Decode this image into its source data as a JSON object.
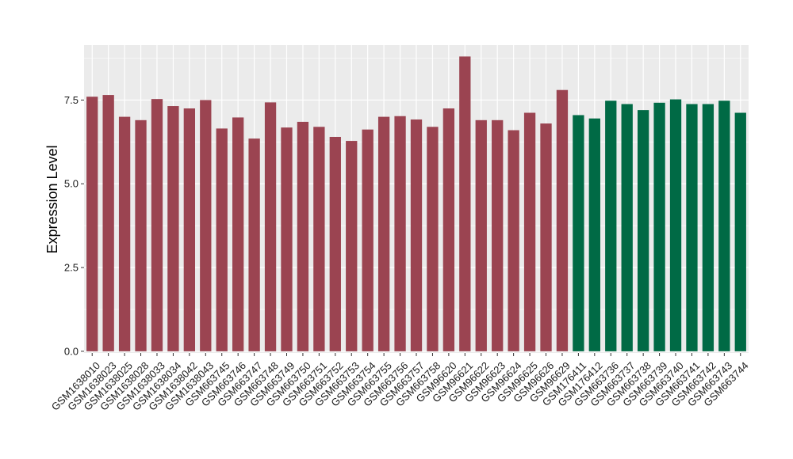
{
  "chart_data": {
    "type": "bar",
    "ylabel": "Expression Level",
    "xlabel": "",
    "ylim": [
      -0.05,
      9.14
    ],
    "yticks": [
      0.0,
      2.5,
      5.0,
      7.5
    ],
    "ytick_labels": [
      "0.0",
      "2.5",
      "5.0",
      "7.5"
    ],
    "grid": true,
    "categories": [
      "GSM1638010",
      "GSM1638023",
      "GSM1638025",
      "GSM1638028",
      "GSM1638033",
      "GSM1638034",
      "GSM1638042",
      "GSM1638043",
      "GSM663745",
      "GSM663746",
      "GSM663747",
      "GSM663748",
      "GSM663749",
      "GSM663750",
      "GSM663751",
      "GSM663752",
      "GSM663753",
      "GSM663754",
      "GSM663755",
      "GSM663756",
      "GSM663757",
      "GSM663758",
      "GSM96620",
      "GSM96621",
      "GSM96622",
      "GSM96623",
      "GSM96624",
      "GSM96625",
      "GSM96626",
      "GSM96629",
      "GSM176411",
      "GSM176412",
      "GSM663736",
      "GSM663737",
      "GSM663738",
      "GSM663739",
      "GSM663740",
      "GSM663741",
      "GSM663742",
      "GSM663743",
      "GSM663744"
    ],
    "values": [
      7.6,
      7.65,
      7.0,
      6.9,
      7.53,
      7.32,
      7.25,
      7.5,
      6.65,
      6.98,
      6.35,
      7.43,
      6.68,
      6.85,
      6.7,
      6.4,
      6.28,
      6.62,
      7.0,
      7.02,
      6.92,
      6.7,
      7.25,
      8.8,
      6.9,
      6.9,
      6.6,
      7.12,
      6.8,
      7.8,
      7.05,
      6.95,
      7.48,
      7.38,
      7.2,
      7.42,
      7.52,
      7.38,
      7.38,
      7.48,
      7.12
    ],
    "groups": [
      "red",
      "red",
      "red",
      "red",
      "red",
      "red",
      "red",
      "red",
      "red",
      "red",
      "red",
      "red",
      "red",
      "red",
      "red",
      "red",
      "red",
      "red",
      "red",
      "red",
      "red",
      "red",
      "red",
      "red",
      "red",
      "red",
      "red",
      "red",
      "red",
      "red",
      "green",
      "green",
      "green",
      "green",
      "green",
      "green",
      "green",
      "green",
      "green",
      "green",
      "green"
    ],
    "colors": {
      "red": "#9b4451",
      "green": "#006a45",
      "panel": "#ebebeb",
      "grid": "#ffffff"
    }
  }
}
